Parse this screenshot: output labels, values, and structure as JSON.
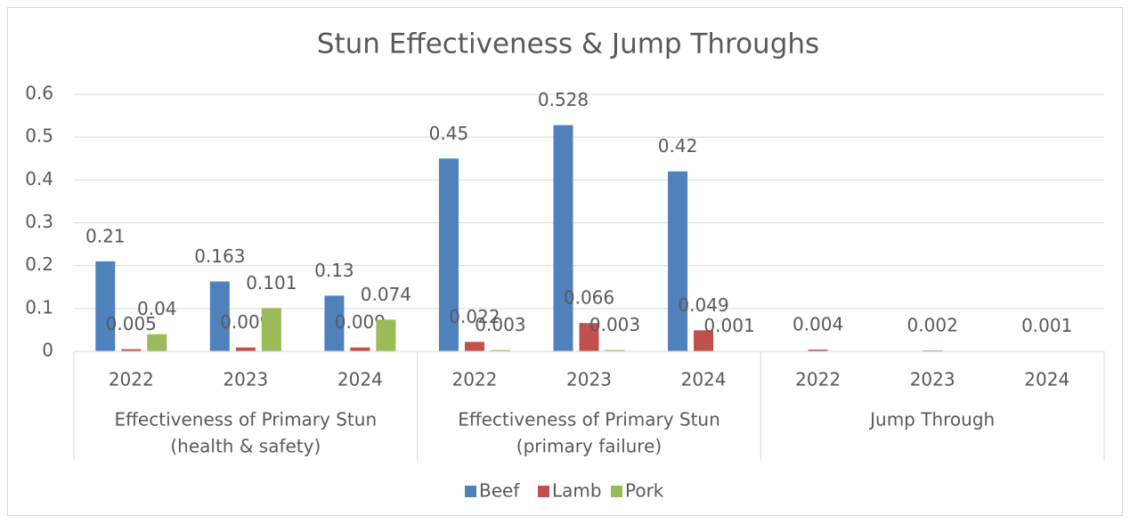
{
  "chart_data": {
    "type": "bar",
    "title": "Stun Effectiveness & Jump Throughs",
    "groups": [
      {
        "name": [
          "Effectiveness of Primary Stun",
          "(health & safety)"
        ],
        "categories": [
          "2022",
          "2023",
          "2024"
        ]
      },
      {
        "name": [
          "Effectiveness of Primary Stun",
          "(primary failure)"
        ],
        "categories": [
          "2022",
          "2023",
          "2024"
        ]
      },
      {
        "name": [
          "Jump Through"
        ],
        "categories": [
          "2022",
          "2023",
          "2024"
        ]
      }
    ],
    "series": [
      {
        "name": "Beef",
        "color": "#4f81bd",
        "values": [
          0.21,
          0.163,
          0.13,
          0.45,
          0.528,
          0.42,
          null,
          null,
          null
        ]
      },
      {
        "name": "Lamb",
        "color": "#c0504d",
        "values": [
          0.005,
          0.009,
          0.009,
          0.022,
          0.066,
          0.049,
          0.004,
          0.002,
          0.001
        ]
      },
      {
        "name": "Pork",
        "color": "#9bbb59",
        "values": [
          0.04,
          0.101,
          0.074,
          0.003,
          0.003,
          0.001,
          null,
          null,
          null
        ]
      }
    ],
    "ylim": [
      0,
      0.6
    ],
    "yticks": [
      0,
      0.1,
      0.2,
      0.3,
      0.4,
      0.5,
      0.6
    ],
    "grid": true,
    "legend": "bottom"
  }
}
